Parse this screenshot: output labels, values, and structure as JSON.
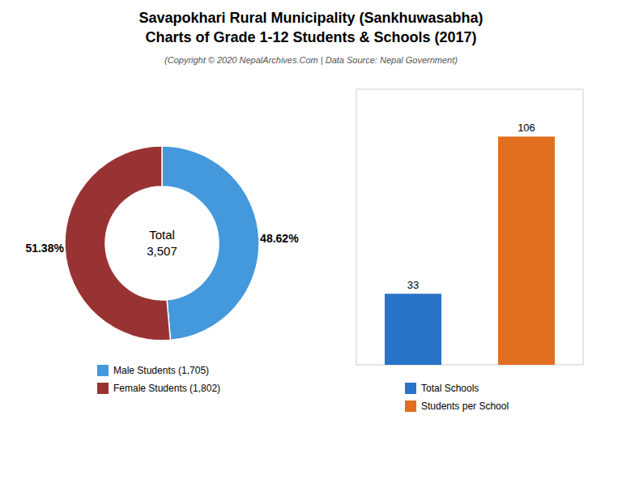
{
  "title": [
    "Savapokhari Rural Municipality (Sankhuwasabha)",
    "Charts of Grade 1-12 Students & Schools (2017)"
  ],
  "subtitle": "(Copyright © 2020 NepalArchives.Com | Data Source: Nepal Government)",
  "chart_data": [
    {
      "type": "donut",
      "categories": [
        "Male Students (1,705)",
        "Female Students (1,802)"
      ],
      "values": [
        48.62,
        51.38
      ],
      "value_labels": [
        "48.62%",
        "51.38%"
      ],
      "colors": [
        "#4499dd",
        "#993333"
      ],
      "annotations": [
        "Total\n3,507"
      ],
      "data_labels": true,
      "legend": "bottom"
    },
    {
      "type": "bar",
      "categories": [
        "Total Schools",
        "Students per School"
      ],
      "values": [
        33,
        106
      ],
      "colors": [
        "#2874c8",
        "#e07020"
      ],
      "ylim": [
        0,
        128
      ],
      "tick_labels": false,
      "data_labels": true,
      "legend": "bottom"
    }
  ]
}
